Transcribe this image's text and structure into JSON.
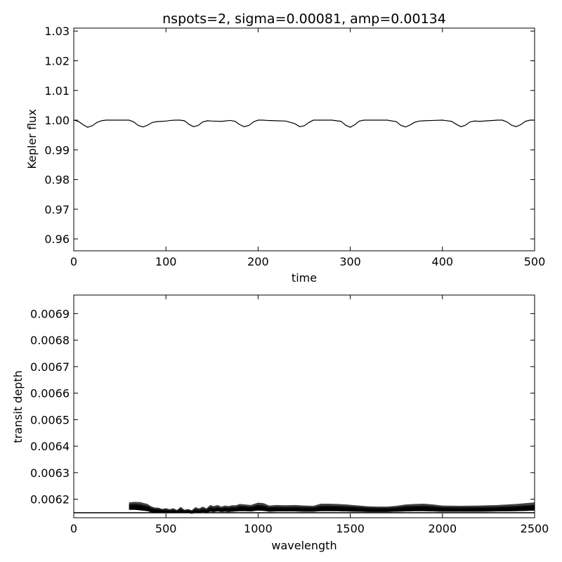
{
  "title": "nspots=2, sigma=0.00081, amp=0.00134",
  "chart_data": [
    {
      "type": "line",
      "xlabel": "time",
      "ylabel": "Kepler flux",
      "xlim": [
        0,
        500
      ],
      "ylim": [
        0.956,
        1.031
      ],
      "xticks": [
        0,
        100,
        200,
        300,
        400,
        500
      ],
      "xtick_labels": [
        "0",
        "100",
        "200",
        "300",
        "400",
        "500"
      ],
      "yticks": [
        0.96,
        0.97,
        0.98,
        0.99,
        1.0,
        1.01,
        1.02,
        1.03
      ],
      "ytick_labels": [
        "0.96",
        "0.97",
        "0.98",
        "0.99",
        "1.00",
        "1.01",
        "1.02",
        "1.03"
      ],
      "series": [
        {
          "x": [
            0,
            5,
            10,
            15,
            20,
            25,
            30,
            35,
            40,
            50,
            60,
            65,
            70,
            75,
            80,
            85,
            90,
            95,
            100,
            105,
            110,
            115,
            120,
            125,
            130,
            135,
            140,
            145,
            150,
            160,
            170,
            175,
            180,
            185,
            190,
            195,
            200,
            205,
            210,
            220,
            230,
            240,
            245,
            250,
            255,
            260,
            265,
            270,
            280,
            290,
            295,
            300,
            305,
            310,
            315,
            320,
            330,
            340,
            350,
            355,
            360,
            365,
            370,
            375,
            380,
            390,
            400,
            410,
            415,
            420,
            425,
            430,
            435,
            440,
            450,
            460,
            465,
            470,
            475,
            480,
            485,
            490,
            495,
            500
          ],
          "y": [
            1.0,
            0.9996,
            0.9985,
            0.9976,
            0.9981,
            0.9992,
            0.9998,
            1.0,
            1.0,
            1.0,
            1.0,
            0.9994,
            0.9982,
            0.9977,
            0.9983,
            0.9992,
            0.9995,
            0.9996,
            0.9997,
            0.9999,
            1.0,
            1.0,
            0.9998,
            0.9986,
            0.9978,
            0.9982,
            0.9994,
            0.9998,
            0.9997,
            0.9996,
            0.9999,
            0.9996,
            0.9985,
            0.9978,
            0.9982,
            0.9994,
            1.0,
            1.0,
            0.9999,
            0.9998,
            0.9997,
            0.9988,
            0.9978,
            0.9981,
            0.9992,
            1.0,
            1.0,
            1.0,
            1.0,
            0.9996,
            0.9983,
            0.9976,
            0.9985,
            0.9997,
            1.0,
            1.0,
            1.0,
            1.0,
            0.9995,
            0.9982,
            0.9977,
            0.9984,
            0.9993,
            0.9997,
            0.9998,
            0.9999,
            1.0,
            0.9996,
            0.9986,
            0.9978,
            0.9983,
            0.9994,
            0.9997,
            0.9996,
            0.9998,
            1.0,
            1.0,
            0.9994,
            0.9983,
            0.9978,
            0.9985,
            0.9996,
            1.0,
            1.0
          ],
          "color": "#000000"
        }
      ]
    },
    {
      "type": "area",
      "xlabel": "wavelength",
      "ylabel": "transit depth",
      "xlim": [
        0,
        2500
      ],
      "ylim": [
        0.00613,
        0.00697
      ],
      "xticks": [
        0,
        500,
        1000,
        1500,
        2000,
        2500
      ],
      "xtick_labels": [
        "0",
        "500",
        "1000",
        "1500",
        "2000",
        "2500"
      ],
      "yticks": [
        0.0062,
        0.0063,
        0.0064,
        0.0065,
        0.0066,
        0.0067,
        0.0068,
        0.0069
      ],
      "ytick_labels": [
        "0.0062",
        "0.0063",
        "0.0064",
        "0.0065",
        "0.0066",
        "0.0067",
        "0.0068",
        "0.0069"
      ],
      "baseline": 0.006149,
      "series": [
        {
          "x": [
            300,
            330,
            360,
            400,
            420,
            440,
            460,
            480,
            500,
            520,
            540,
            560,
            580,
            600,
            620,
            640,
            660,
            680,
            700,
            720,
            740,
            760,
            780,
            800,
            820,
            840,
            860,
            880,
            900,
            930,
            960,
            1000,
            1030,
            1060,
            1100,
            1150,
            1200,
            1250,
            1300,
            1340,
            1380,
            1430,
            1480,
            1530,
            1600,
            1650,
            1700,
            1750,
            1800,
            1850,
            1900,
            1950,
            2000,
            2100,
            2200,
            2300,
            2400,
            2450,
            2500
          ],
          "upper": [
            0.006188,
            0.00619,
            0.006189,
            0.006182,
            0.006173,
            0.006168,
            0.006168,
            0.006163,
            0.006166,
            0.006162,
            0.006166,
            0.006159,
            0.006171,
            0.00616,
            0.006163,
            0.006158,
            0.00617,
            0.006165,
            0.006172,
            0.006165,
            0.006178,
            0.006174,
            0.006178,
            0.006172,
            0.006176,
            0.006174,
            0.006177,
            0.006177,
            0.006182,
            0.00618,
            0.006178,
            0.006187,
            0.006185,
            0.006176,
            0.006178,
            0.006177,
            0.006178,
            0.006176,
            0.006175,
            0.006183,
            0.006183,
            0.006182,
            0.00618,
            0.006177,
            0.006173,
            0.006172,
            0.006172,
            0.006175,
            0.00618,
            0.006182,
            0.006183,
            0.00618,
            0.006176,
            0.006175,
            0.006176,
            0.006178,
            0.006182,
            0.006185,
            0.006188
          ],
          "mid": [
            0.006178,
            0.00618,
            0.006178,
            0.006172,
            0.006166,
            0.006162,
            0.006161,
            0.006158,
            0.006159,
            0.006156,
            0.006158,
            0.006155,
            0.006162,
            0.006155,
            0.006157,
            0.006154,
            0.006161,
            0.006158,
            0.006163,
            0.006159,
            0.006168,
            0.006165,
            0.006168,
            0.006164,
            0.006167,
            0.006166,
            0.006168,
            0.006168,
            0.006172,
            0.006171,
            0.006169,
            0.006176,
            0.006174,
            0.006168,
            0.006169,
            0.006168,
            0.006169,
            0.006168,
            0.006167,
            0.006173,
            0.006173,
            0.006172,
            0.006171,
            0.006169,
            0.006166,
            0.006165,
            0.006165,
            0.006167,
            0.006171,
            0.006172,
            0.006173,
            0.006171,
            0.006168,
            0.006167,
            0.006168,
            0.006169,
            0.006172,
            0.006174,
            0.006176
          ],
          "lower": [
            0.00616,
            0.00616,
            0.006158,
            0.006155,
            0.006151,
            0.00615,
            0.00615,
            0.00615,
            0.00615,
            0.006149,
            0.00615,
            0.006148,
            0.006151,
            0.006149,
            0.00615,
            0.006145,
            0.00615,
            0.006149,
            0.006152,
            0.006149,
            0.006153,
            0.006152,
            0.006154,
            0.006152,
            0.006153,
            0.006152,
            0.006153,
            0.006154,
            0.006155,
            0.006155,
            0.006154,
            0.006157,
            0.006156,
            0.006153,
            0.006154,
            0.006154,
            0.006154,
            0.006153,
            0.006153,
            0.006155,
            0.006155,
            0.006155,
            0.006154,
            0.006153,
            0.006152,
            0.006152,
            0.006152,
            0.006153,
            0.006154,
            0.006155,
            0.006155,
            0.006154,
            0.006153,
            0.006153,
            0.006153,
            0.006154,
            0.006155,
            0.006156,
            0.006157
          ],
          "outer_color": "#444444",
          "mid_color": "#111111"
        }
      ]
    }
  ]
}
